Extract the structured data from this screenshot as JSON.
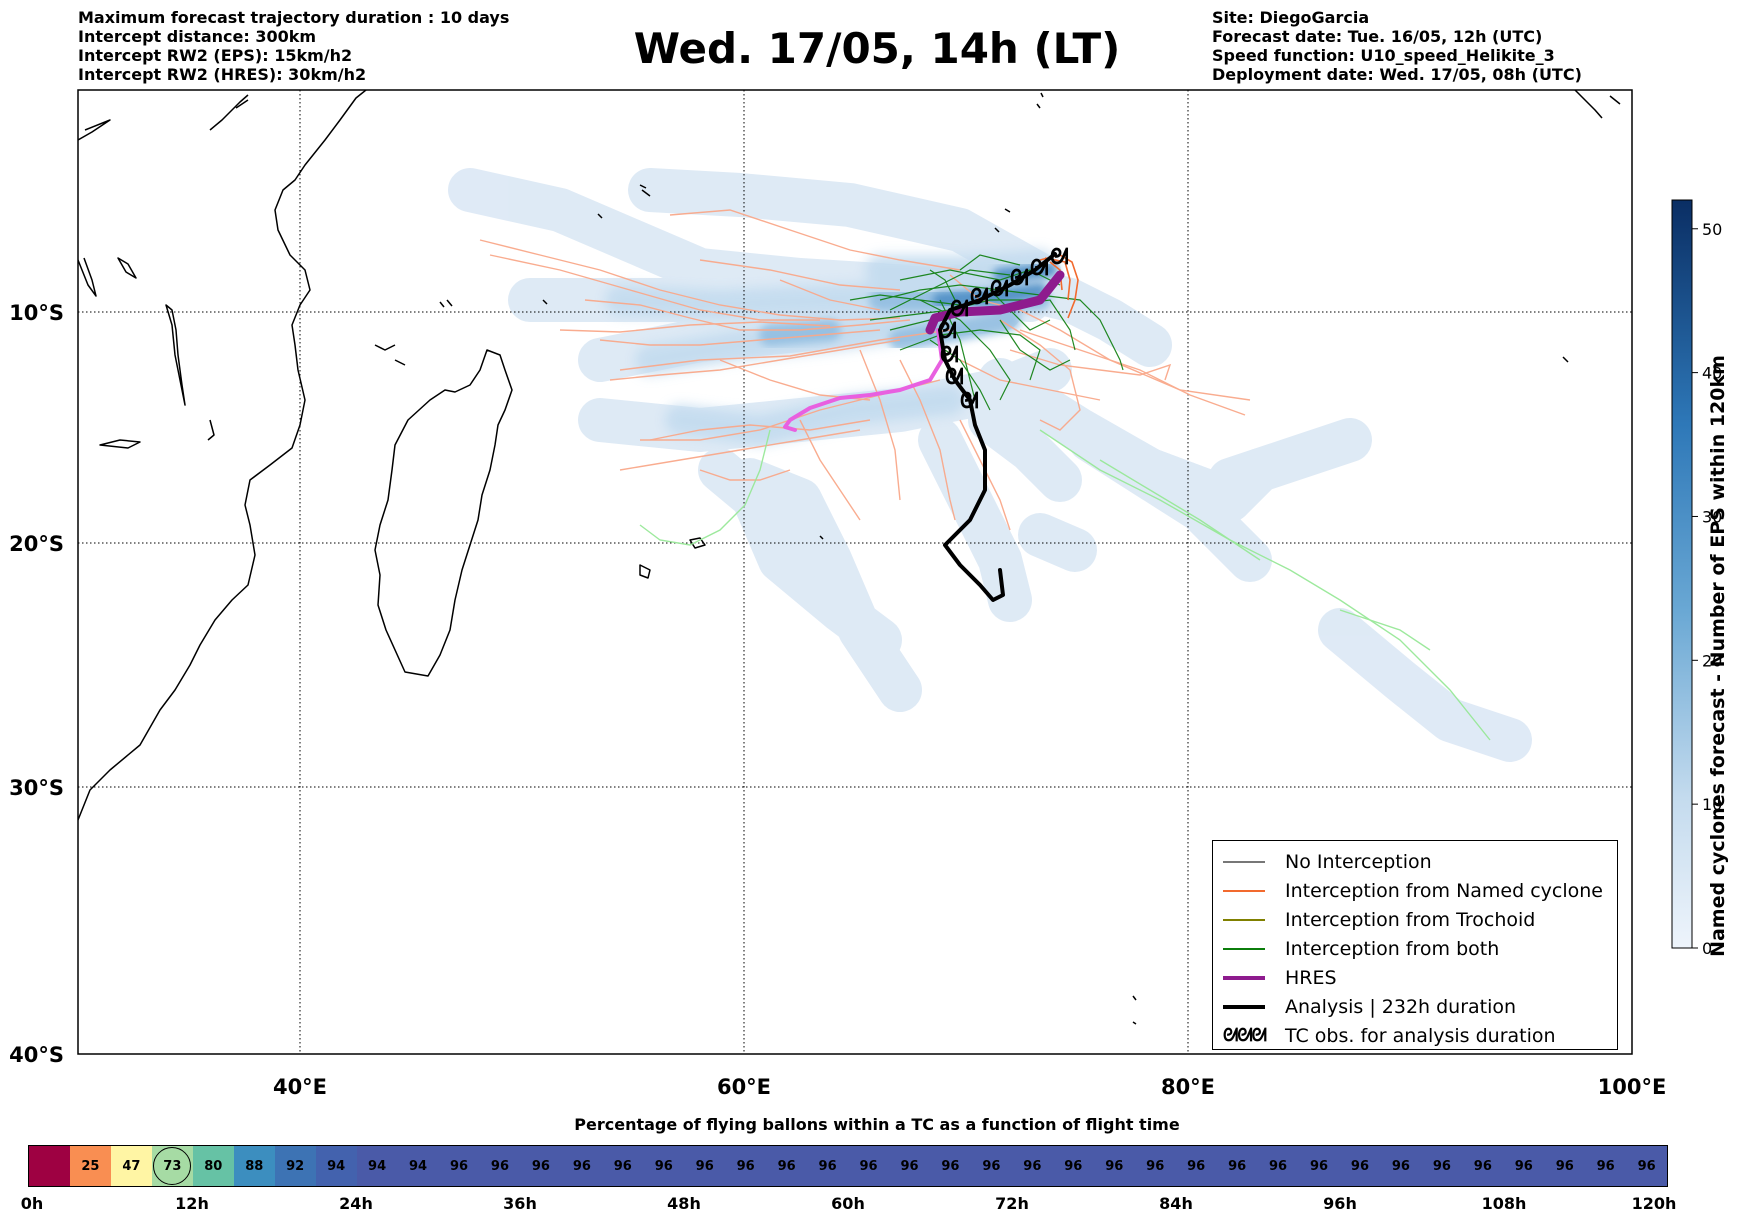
{
  "header_left": [
    "Maximum forecast trajectory duration : 10 days",
    "Intercept distance: 300km",
    "Intercept RW2 (EPS):  15km/h2",
    "Intercept RW2 (HRES): 30km/h2"
  ],
  "main_title": "Wed. 17/05, 14h (LT)",
  "header_right": [
    "Site: DiegoGarcia",
    "Forecast date: Tue. 16/05, 12h (UTC)",
    "Speed function: U10_speed_Helikite_3",
    "Deployment date: Wed. 17/05, 08h (UTC)"
  ],
  "map": {
    "lon_range": [
      30,
      100
    ],
    "lat_range": [
      -40,
      0
    ],
    "lon_ticks": [
      40,
      60,
      80,
      100
    ],
    "lon_tick_labels": [
      "40°E",
      "60°E",
      "80°E",
      "100°E"
    ],
    "lat_ticks": [
      -10,
      -20,
      -30,
      -40
    ],
    "lat_tick_labels": [
      "10°S",
      "20°S",
      "30°S",
      "40°S"
    ],
    "grid": true,
    "colors": {
      "no_interception": "#777777",
      "named_cyclone": "#f26a2e",
      "named_cyclone_light": "#f9a88a",
      "trochoid": "#808000",
      "both": "#0b7d0b",
      "both_light": "#98e898",
      "hres": "#8e1b8e",
      "hres_light": "#e860e0",
      "analysis": "#000000",
      "density_light": "#dde9f5",
      "density_mid": "#9cc3e2",
      "density_dark": "#3d80bb"
    },
    "analysis_track": [
      [
        72.8,
        -7.6
      ],
      [
        72.1,
        -8.0
      ],
      [
        71.0,
        -8.8
      ],
      [
        70.2,
        -9.6
      ],
      [
        69.6,
        -10.1
      ],
      [
        69.1,
        -10.6
      ],
      [
        69.0,
        -11.3
      ],
      [
        69.2,
        -12.3
      ],
      [
        69.8,
        -13.2
      ],
      [
        70.2,
        -14.2
      ],
      [
        70.6,
        -14.9
      ],
      [
        71.0,
        -15.8
      ],
      [
        71.1,
        -17.0
      ],
      [
        70.2,
        -18.5
      ],
      [
        68.9,
        -20.0
      ],
      [
        69.7,
        -21.2
      ],
      [
        71.0,
        -22.1
      ],
      [
        71.6,
        -22.6
      ],
      [
        71.5,
        -21.5
      ]
    ],
    "hres_track": [
      [
        73.4,
        -8.3
      ],
      [
        72.6,
        -9.3
      ],
      [
        71.4,
        -10.0
      ],
      [
        70.2,
        -10.2
      ],
      [
        69.5,
        -10.6
      ],
      [
        69.1,
        -11.5
      ],
      [
        69.3,
        -12.2
      ],
      [
        68.4,
        -12.8
      ],
      [
        67.3,
        -13.6
      ],
      [
        66.0,
        -14.0
      ],
      [
        64.6,
        -14.3
      ],
      [
        63.2,
        -14.8
      ],
      [
        62.0,
        -15.2
      ],
      [
        61.7,
        -14.8
      ]
    ],
    "tc_obs_points": [
      [
        72.9,
        -7.8
      ],
      [
        72.0,
        -8.4
      ],
      [
        70.9,
        -8.9
      ],
      [
        70.0,
        -9.5
      ],
      [
        69.5,
        -10.1
      ],
      [
        69.1,
        -10.9
      ],
      [
        69.2,
        -11.9
      ],
      [
        69.6,
        -12.6
      ],
      [
        70.2,
        -13.6
      ],
      [
        70.6,
        -14.2
      ]
    ],
    "colorbar": {
      "min": 0,
      "max": 52,
      "ticks": [
        0,
        10,
        20,
        30,
        40,
        50
      ],
      "label": "Named cyclones forecast - Number of EPS within 120km"
    }
  },
  "legend": [
    {
      "label": "No Interception",
      "type": "line",
      "color": "#777777",
      "width": 1.5
    },
    {
      "label": "Interception from Named cyclone",
      "type": "line",
      "color": "#f26a2e",
      "width": 1.5
    },
    {
      "label": "Interception from Trochoid",
      "type": "line",
      "color": "#808000",
      "width": 1.5
    },
    {
      "label": "Interception from both",
      "type": "line",
      "color": "#0b7d0b",
      "width": 1.5
    },
    {
      "label": "HRES",
      "type": "line",
      "color": "#8e1b8e",
      "width": 4
    },
    {
      "label": "Analysis | 232h duration",
      "type": "line",
      "color": "#000000",
      "width": 4
    },
    {
      "label": "TC obs. for analysis duration",
      "type": "glyph",
      "glyph": "ᘛᘛᘛ"
    }
  ],
  "timebar": {
    "title": "Percentage of flying ballons within a TC as a function of flight time",
    "values": [
      "",
      "25",
      "47",
      "73",
      "80",
      "88",
      "92",
      "94",
      "94",
      "94",
      "96",
      "96",
      "96",
      "96",
      "96",
      "96",
      "96",
      "96",
      "96",
      "96",
      "96",
      "96",
      "96",
      "96",
      "96",
      "96",
      "96",
      "96",
      "96",
      "96",
      "96",
      "96",
      "96",
      "96",
      "96",
      "96",
      "96",
      "96",
      "96",
      "96"
    ],
    "highlight_index": 3,
    "colors": [
      "#9e0142",
      "#f98e52",
      "#fff5a4",
      "#a6dba4",
      "#66c2a5",
      "#3c8ebf",
      "#3d73b4",
      "#4362ae",
      "#4a5aa8",
      "#4a5aa8"
    ],
    "tick_labels": [
      "0h",
      "12h",
      "24h",
      "36h",
      "48h",
      "60h",
      "72h",
      "84h",
      "96h",
      "108h",
      "120h"
    ]
  }
}
